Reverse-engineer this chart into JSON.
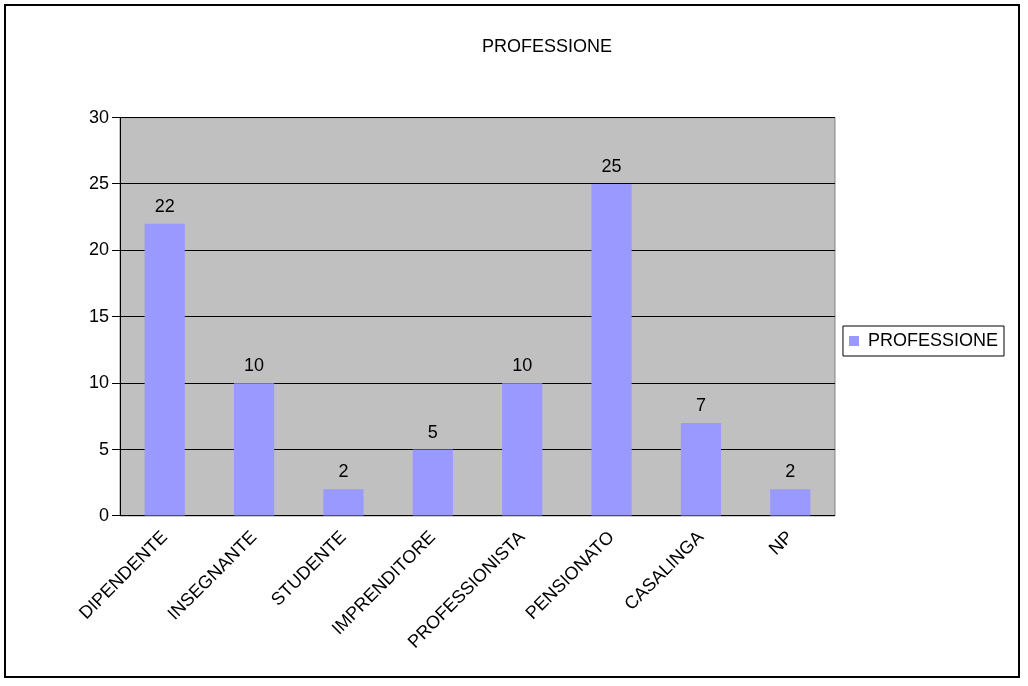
{
  "chart_data": {
    "type": "bar",
    "title": "PROFESSIONE",
    "categories": [
      "DIPENDENTE",
      "INSEGNANTE",
      "STUDENTE",
      "IMPRENDITORE",
      "PROFESSIONISTA",
      "PENSIONATO",
      "CASALINGA",
      "NP"
    ],
    "series": [
      {
        "name": "PROFESSIONE",
        "color": "#9999ff",
        "values": [
          22,
          10,
          2,
          5,
          10,
          25,
          7,
          2
        ]
      }
    ],
    "ylim": [
      0,
      30
    ],
    "yticks": [
      0,
      5,
      10,
      15,
      20,
      25,
      30
    ],
    "grid": "y",
    "legend": "right",
    "data_labels": true
  }
}
